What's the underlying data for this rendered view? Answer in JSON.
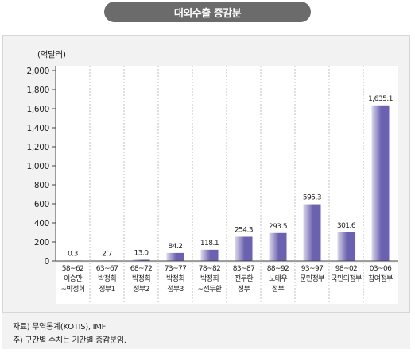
{
  "title": "대외수출 증감분",
  "chart_data": {
    "type": "bar",
    "unit_label": "(억달러)",
    "categories": [
      [
        "58~62",
        "이승만",
        "~박정희"
      ],
      [
        "63~67",
        "박정희",
        "정부1"
      ],
      [
        "68~72",
        "박정희",
        "정부2"
      ],
      [
        "73~77",
        "박정희",
        "정부3"
      ],
      [
        "78~82",
        "박정희",
        "~전두환"
      ],
      [
        "83~87",
        "전두환",
        "정부"
      ],
      [
        "88~92",
        "노태우",
        "정부"
      ],
      [
        "93~97",
        "문민정부",
        ""
      ],
      [
        "98~02",
        "국민의정부",
        ""
      ],
      [
        "03~06",
        "참여정부",
        ""
      ]
    ],
    "values": [
      0.3,
      2.7,
      13.0,
      84.2,
      118.1,
      254.3,
      293.5,
      595.3,
      301.6,
      1635.1
    ],
    "value_labels": [
      "0.3",
      "2.7",
      "13.0",
      "84.2",
      "118.1",
      "254.3",
      "293.5",
      "595.3",
      "301.6",
      "1,635.1"
    ],
    "y_ticks": [
      "0",
      "200",
      "400",
      "600",
      "800",
      "1,000",
      "1,200",
      "1,400",
      "1,600",
      "1,800",
      "2,000"
    ],
    "ylim": [
      0,
      2000
    ],
    "grid": false,
    "bar_color_dark": "#6a62b0",
    "bar_color_light": "#dcd8f0"
  },
  "notes": {
    "source": "자료) 무역통계(KOTIS), IMF",
    "remark": "주)  구간별 수치는 기간별 증감분임."
  }
}
